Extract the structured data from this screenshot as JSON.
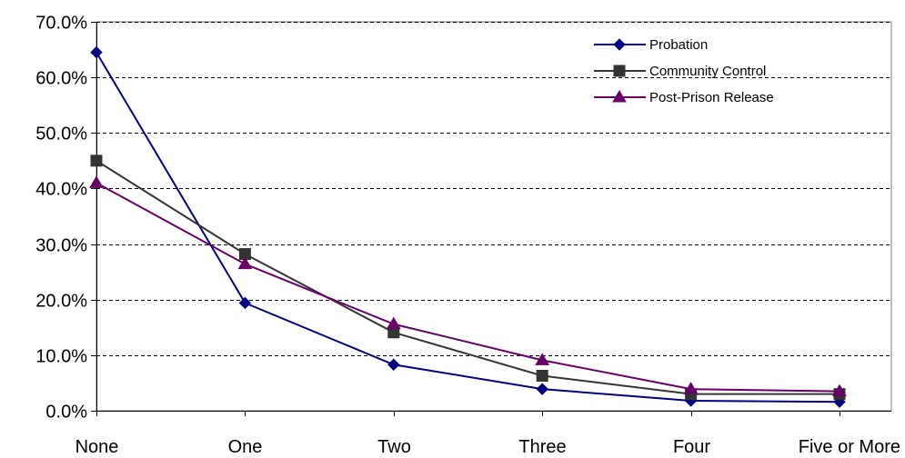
{
  "chart_data": {
    "type": "line",
    "categories": [
      "None",
      "One",
      "Two",
      "Three",
      "Four",
      "Five or More"
    ],
    "ylim": [
      0,
      70
    ],
    "yticks": [
      0,
      10,
      20,
      30,
      40,
      50,
      60,
      70
    ],
    "ytick_labels": [
      "0.0%",
      "10.0%",
      "20.0%",
      "30.0%",
      "40.0%",
      "50.0%",
      "60.0%",
      "70.0%"
    ],
    "grid": "horizontal dashed",
    "legend_placement": "top-right",
    "series": [
      {
        "name": "Probation",
        "marker": "diamond",
        "color": "#000080",
        "values": [
          64.5,
          19.4,
          8.3,
          3.9,
          1.8,
          1.6
        ]
      },
      {
        "name": "Community Control",
        "marker": "square",
        "color": "#333333",
        "values": [
          45.0,
          28.2,
          14.1,
          6.3,
          3.0,
          3.0
        ]
      },
      {
        "name": "Post-Prison Release",
        "marker": "triangle",
        "color": "#660066",
        "values": [
          41.0,
          26.4,
          15.6,
          9.1,
          3.9,
          3.5
        ]
      }
    ]
  }
}
